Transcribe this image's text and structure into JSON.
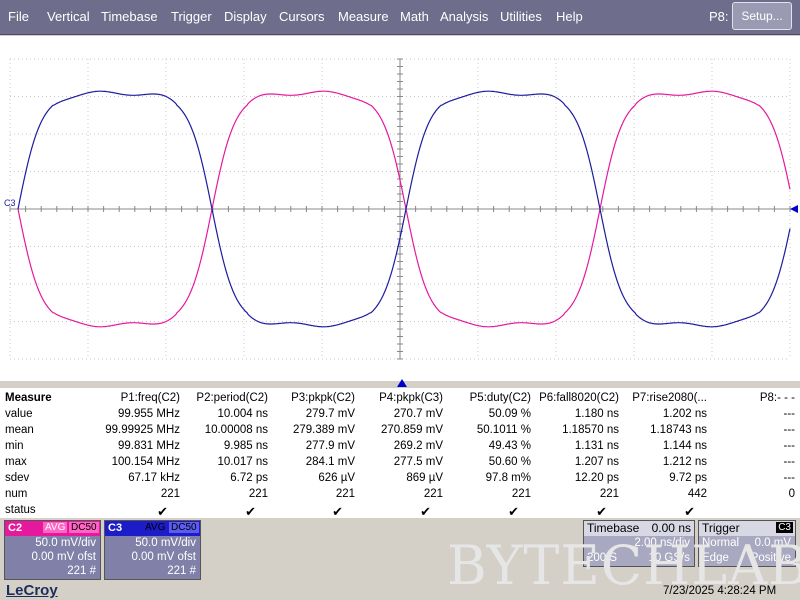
{
  "menu": [
    "File",
    "Vertical",
    "Timebase",
    "Trigger",
    "Display",
    "Cursors",
    "Measure",
    "Math",
    "Analysis",
    "Utilities",
    "Help"
  ],
  "p8_label": "P8:",
  "setup_label": "Setup...",
  "grid": {
    "ch3_marker": "C3"
  },
  "measure": {
    "header_label": "Measure",
    "columns": [
      "P1:freq(C2)",
      "P2:period(C2)",
      "P3:pkpk(C2)",
      "P4:pkpk(C3)",
      "P5:duty(C2)",
      "P6:fall8020(C2)",
      "P7:rise2080(...",
      "P8:- - -"
    ],
    "rows": [
      {
        "label": "value",
        "cells": [
          "99.955 MHz",
          "10.004 ns",
          "279.7 mV",
          "270.7 mV",
          "50.09 %",
          "1.180 ns",
          "1.202 ns",
          "---"
        ]
      },
      {
        "label": "mean",
        "cells": [
          "99.99925 MHz",
          "10.00008 ns",
          "279.389 mV",
          "270.859 mV",
          "50.1011 %",
          "1.18570 ns",
          "1.18743 ns",
          "---"
        ]
      },
      {
        "label": "min",
        "cells": [
          "99.831 MHz",
          "9.985 ns",
          "277.9 mV",
          "269.2 mV",
          "49.43 %",
          "1.131 ns",
          "1.144 ns",
          "---"
        ]
      },
      {
        "label": "max",
        "cells": [
          "100.154 MHz",
          "10.017 ns",
          "284.1 mV",
          "277.5 mV",
          "50.60 %",
          "1.207 ns",
          "1.212 ns",
          "---"
        ]
      },
      {
        "label": "sdev",
        "cells": [
          "67.17 kHz",
          "6.72 ps",
          "626 µV",
          "869 µV",
          "97.8 m%",
          "12.20 ps",
          "9.72 ps",
          "---"
        ]
      },
      {
        "label": "num",
        "cells": [
          "221",
          "221",
          "221",
          "221",
          "221",
          "221",
          "442",
          "0"
        ]
      },
      {
        "label": "status",
        "cells": [
          "✔",
          "✔",
          "✔",
          "✔",
          "✔",
          "✔",
          "✔",
          ""
        ]
      }
    ]
  },
  "channels": [
    {
      "name": "C2",
      "avg": "AVG",
      "dc": "DC50",
      "volts_div": "50.0 mV/div",
      "offset": "0.00 mV ofst",
      "sweeps": "221 #",
      "color": "#ff1493"
    },
    {
      "name": "C3",
      "avg": "AVG",
      "dc": "DC50",
      "volts_div": "50.0 mV/div",
      "offset": "0.00 mV ofst",
      "sweeps": "221 #",
      "color": "#0000cd"
    }
  ],
  "timebase": {
    "title": "Timebase",
    "delay": "0.00 ns",
    "time_div": "2.00 ns/div",
    "samples": "200 S",
    "rate": "10 GS/s"
  },
  "trigger": {
    "title": "Trigger",
    "channel": "C3",
    "mode": "Normal",
    "level": "0.0 mV",
    "type": "Edge",
    "slope": "Positive"
  },
  "watermark": "BYTECHLAB",
  "brand": "LeCroy",
  "datetime": "7/23/2025 4:28:24 PM",
  "trace_colors": {
    "c2": "#e6199e",
    "c3": "#1c1c9e"
  }
}
